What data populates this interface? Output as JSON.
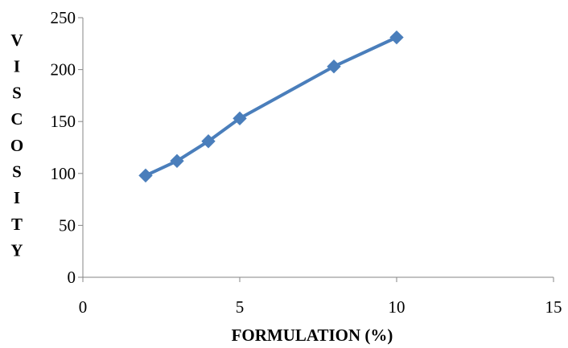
{
  "chart_data": {
    "type": "line",
    "title": "",
    "xlabel": "FORMULATION (%)",
    "ylabel": "VISCOSITY",
    "xlim": [
      0,
      15
    ],
    "ylim": [
      0,
      250
    ],
    "xticks": [
      0,
      5,
      10,
      15
    ],
    "yticks": [
      0,
      50,
      100,
      150,
      200,
      250
    ],
    "grid": false,
    "legend": "none",
    "marker": "diamond",
    "color": "#4A7EBB",
    "series": [
      {
        "x": [
          2,
          3,
          4,
          5,
          8,
          10
        ],
        "y": [
          98,
          112,
          131,
          153,
          203,
          231
        ]
      }
    ]
  }
}
